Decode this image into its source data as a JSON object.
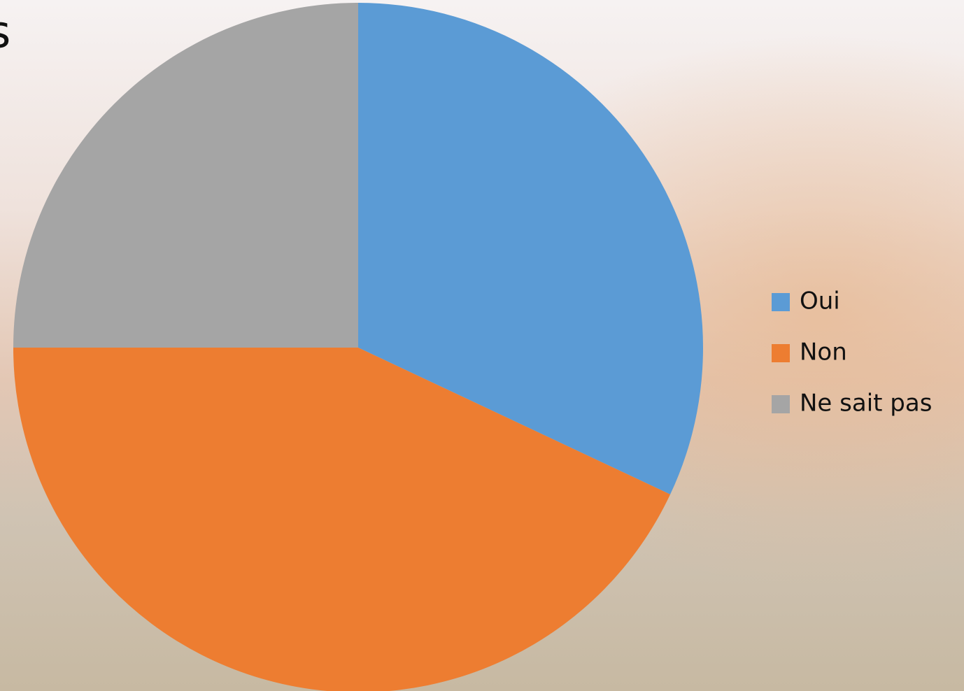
{
  "chart_data": {
    "type": "pie",
    "title": "s",
    "categories": [
      "Oui",
      "Non",
      "Ne sait pas"
    ],
    "values": [
      32,
      43,
      25
    ],
    "colors": [
      "#5b9bd5",
      "#ed7d31",
      "#a5a5a5"
    ],
    "legend": "right"
  }
}
